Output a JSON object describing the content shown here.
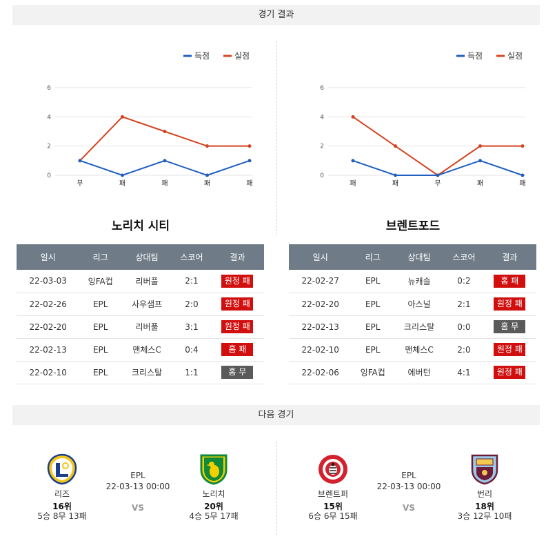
{
  "results_header": "경기 결과",
  "next_header": "다음 경기",
  "colors": {
    "scored": "#1f5fbf",
    "conceded": "#d3431f",
    "header_bg": "#6f7c87",
    "loss_badge": "#d10f0f",
    "draw_badge": "#5a5a5a"
  },
  "chart_data": [
    {
      "type": "line",
      "legend": [
        "득점",
        "실점"
      ],
      "categories": [
        "무",
        "패",
        "패",
        "패",
        "패"
      ],
      "series": [
        {
          "name": "득점",
          "values": [
            1,
            0,
            1,
            0,
            1
          ]
        },
        {
          "name": "실점",
          "values": [
            1,
            4,
            3,
            2,
            2
          ]
        }
      ],
      "yticks": [
        "0",
        "2",
        "4",
        "6"
      ],
      "ylim": [
        0,
        6
      ],
      "legend_position": "top-right",
      "grid": true
    },
    {
      "type": "line",
      "legend": [
        "득점",
        "실점"
      ],
      "categories": [
        "패",
        "패",
        "무",
        "패",
        "패"
      ],
      "series": [
        {
          "name": "득점",
          "values": [
            1,
            0,
            0,
            1,
            0
          ]
        },
        {
          "name": "실점",
          "values": [
            4,
            2,
            0,
            2,
            2
          ]
        }
      ],
      "yticks": [
        "0",
        "2",
        "4",
        "6"
      ],
      "ylim": [
        0,
        6
      ],
      "legend_position": "top-right",
      "grid": true
    }
  ],
  "left_team": {
    "name": "노리치 시티",
    "headers": [
      "일시",
      "리그",
      "상대팀",
      "스코어",
      "결과"
    ],
    "rows": [
      {
        "date": "22-03-03",
        "league": "잉FA컵",
        "opponent": "리버풀",
        "score": "2:1",
        "result": "원정 패",
        "kind": "loss"
      },
      {
        "date": "22-02-26",
        "league": "EPL",
        "opponent": "사우샘프",
        "score": "2:0",
        "result": "원정 패",
        "kind": "loss"
      },
      {
        "date": "22-02-20",
        "league": "EPL",
        "opponent": "리버풀",
        "score": "3:1",
        "result": "원정 패",
        "kind": "loss"
      },
      {
        "date": "22-02-13",
        "league": "EPL",
        "opponent": "맨체스C",
        "score": "0:4",
        "result": "홈 패",
        "kind": "loss"
      },
      {
        "date": "22-02-10",
        "league": "EPL",
        "opponent": "크리스탈",
        "score": "1:1",
        "result": "홈 무",
        "kind": "draw"
      }
    ]
  },
  "right_team": {
    "name": "브렌트포드",
    "headers": [
      "일시",
      "리그",
      "상대팀",
      "스코어",
      "결과"
    ],
    "rows": [
      {
        "date": "22-02-27",
        "league": "EPL",
        "opponent": "뉴캐슬",
        "score": "0:2",
        "result": "홈 패",
        "kind": "loss"
      },
      {
        "date": "22-02-20",
        "league": "EPL",
        "opponent": "아스널",
        "score": "2:1",
        "result": "원정 패",
        "kind": "loss"
      },
      {
        "date": "22-02-13",
        "league": "EPL",
        "opponent": "크리스탈",
        "score": "0:0",
        "result": "홈 무",
        "kind": "draw"
      },
      {
        "date": "22-02-10",
        "league": "EPL",
        "opponent": "맨체스C",
        "score": "2:0",
        "result": "원정 패",
        "kind": "loss"
      },
      {
        "date": "22-02-06",
        "league": "잉FA컵",
        "opponent": "에버턴",
        "score": "4:1",
        "result": "원정 패",
        "kind": "loss"
      }
    ]
  },
  "next_matches": [
    {
      "league": "EPL",
      "datetime": "22-03-13 00:00",
      "vs": "VS",
      "home": {
        "name": "리즈",
        "rank": "16위",
        "record": "5승 8무 13패",
        "logo": "leeds-crest-icon"
      },
      "away": {
        "name": "노리치",
        "rank": "20위",
        "record": "4승 5무 17패",
        "logo": "norwich-crest-icon"
      }
    },
    {
      "league": "EPL",
      "datetime": "22-03-13 00:00",
      "vs": "VS",
      "home": {
        "name": "브렌트퍼",
        "rank": "15위",
        "record": "6승 6무 15패",
        "logo": "brentford-crest-icon"
      },
      "away": {
        "name": "번리",
        "rank": "18위",
        "record": "3승 12무 10패",
        "logo": "burnley-crest-icon"
      }
    }
  ]
}
